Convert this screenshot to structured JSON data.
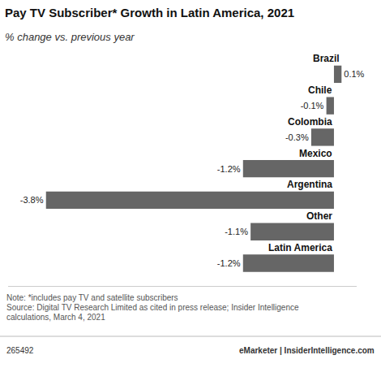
{
  "chart_data": {
    "type": "bar",
    "orientation": "horizontal",
    "title": "Pay TV Subscriber* Growth in Latin America, 2021",
    "subtitle": "% change vs. previous year",
    "categories": [
      "Brazil",
      "Chile",
      "Colombia",
      "Mexico",
      "Argentina",
      "Other",
      "Latin America"
    ],
    "values": [
      0.1,
      -0.1,
      -0.3,
      -1.2,
      -3.8,
      -1.1,
      -1.2
    ],
    "value_labels": [
      "0.1%",
      "-0.1%",
      "-0.3%",
      "-1.2%",
      "-3.8%",
      "-1.1%",
      "-1.2%"
    ],
    "color": "#666666",
    "xlim": [
      -4.3,
      0.3
    ],
    "tick_labels": false,
    "grid": false,
    "data_labels": true,
    "annotations": [
      "Note: *includes pay TV and satellite subscribers",
      "Source: Digital TV Research Limited as cited in press release; Insider Intelligence",
      "calculations, March 4, 2021",
      "265492",
      "eMarketer | InsiderIntelligence.com"
    ]
  }
}
